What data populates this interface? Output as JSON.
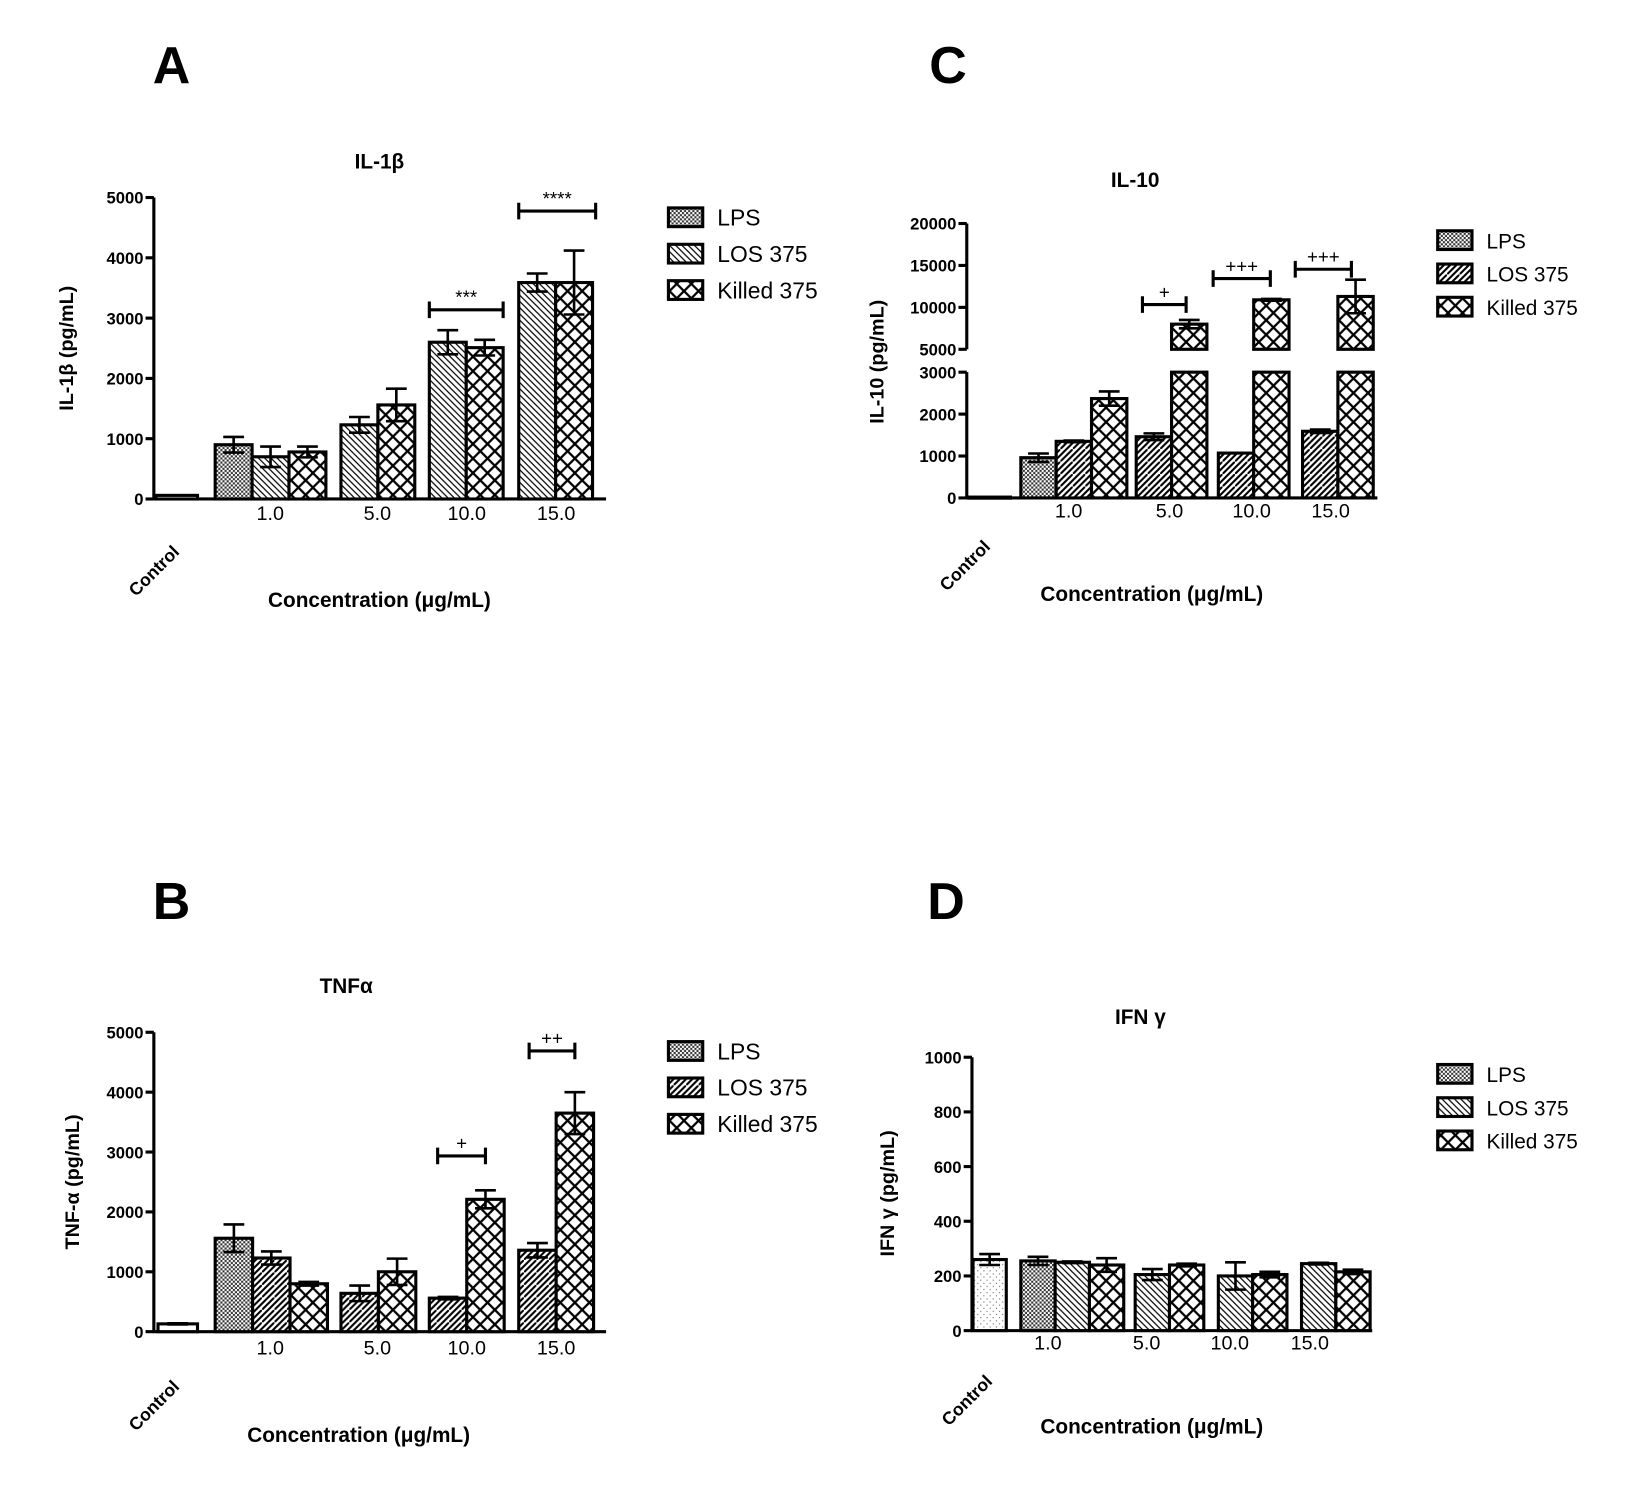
{
  "chart_data": [
    {
      "type": "bar",
      "panel": "A",
      "title": "IL-1β",
      "ylabel": "IL-1β (pg/mL)",
      "xlabel": "Concentration (μg/mL)",
      "ylim": [
        0,
        5000
      ],
      "yticks": [
        "0",
        "1000",
        "2000",
        "3000",
        "4000",
        "5000"
      ],
      "control_label": "Control",
      "control": {
        "value": 60,
        "error": 0
      },
      "categories": [
        "1.0",
        "5.0",
        "10.0",
        "15.0"
      ],
      "legend": [
        "LPS",
        "LOS 375",
        "Killed 375"
      ],
      "series": [
        {
          "name": "LPS",
          "values": [
            900,
            null,
            null,
            null
          ],
          "errors": [
            130,
            null,
            null,
            null
          ]
        },
        {
          "name": "LOS 375",
          "values": [
            700,
            1230,
            2600,
            3590
          ],
          "errors": [
            170,
            130,
            200,
            150
          ]
        },
        {
          "name": "Killed 375",
          "values": [
            780,
            1560,
            2510,
            3590
          ],
          "errors": [
            90,
            270,
            130,
            530
          ]
        }
      ],
      "annotations": [
        {
          "label": "***",
          "category": "10.0"
        },
        {
          "label": "****",
          "category": "15.0"
        }
      ]
    },
    {
      "type": "bar",
      "panel": "B",
      "title": "TNFα",
      "ylabel": "TNF-α (pg/mL)",
      "xlabel": "Concentration (μg/mL)",
      "ylim": [
        0,
        5000
      ],
      "yticks": [
        "0",
        "1000",
        "2000",
        "3000",
        "4000",
        "5000"
      ],
      "control_label": "Control",
      "control": {
        "value": 130,
        "error": 10
      },
      "categories": [
        "1.0",
        "5.0",
        "10.0",
        "15.0"
      ],
      "legend": [
        "LPS",
        "LOS 375",
        "Killed 375"
      ],
      "series": [
        {
          "name": "LPS",
          "values": [
            1560,
            null,
            null,
            null
          ],
          "errors": [
            230,
            null,
            null,
            null
          ]
        },
        {
          "name": "LOS 375",
          "values": [
            1230,
            640,
            560,
            1360
          ],
          "errors": [
            110,
            130,
            20,
            120
          ]
        },
        {
          "name": "Killed 375",
          "values": [
            800,
            1000,
            2210,
            3650
          ],
          "errors": [
            30,
            220,
            150,
            350
          ]
        }
      ],
      "annotations": [
        {
          "label": "+",
          "category": "10.0"
        },
        {
          "label": "++",
          "category": "15.0"
        }
      ]
    },
    {
      "type": "bar",
      "panel": "C",
      "title": "IL-10",
      "ylabel": "IL-10 (pg/mL)",
      "xlabel": "Concentration (μg/mL)",
      "ylim": [
        0,
        20000
      ],
      "axis_break": [
        3000,
        5000
      ],
      "yticks": [
        "0",
        "1000",
        "2000",
        "3000",
        "5000",
        "10000",
        "15000",
        "20000"
      ],
      "control_label": "Control",
      "control": {
        "value": 20,
        "error": 0
      },
      "categories": [
        "1.0",
        "5.0",
        "10.0",
        "15.0"
      ],
      "legend": [
        "LPS",
        "LOS 375",
        "Killed 375"
      ],
      "series": [
        {
          "name": "LPS",
          "values": [
            960,
            null,
            null,
            null
          ],
          "errors": [
            100,
            null,
            null,
            null
          ]
        },
        {
          "name": "LOS 375",
          "values": [
            1350,
            1460,
            1070,
            1590
          ],
          "errors": [
            20,
            80,
            0,
            40
          ]
        },
        {
          "name": "Killed 375",
          "values": [
            2370,
            8000,
            10900,
            11300
          ],
          "errors": [
            170,
            500,
            100,
            2000
          ]
        }
      ],
      "annotations": [
        {
          "label": "+",
          "category": "5.0"
        },
        {
          "label": "+++",
          "category": "10.0"
        },
        {
          "label": "+++",
          "category": "15.0"
        }
      ]
    },
    {
      "type": "bar",
      "panel": "D",
      "title": "IFN γ",
      "ylabel": "IFN γ (pg/mL)",
      "xlabel": "Concentration (μg/mL)",
      "ylim": [
        0,
        1000
      ],
      "yticks": [
        "0",
        "200",
        "400",
        "600",
        "800",
        "1000"
      ],
      "control_label": "Control",
      "control": {
        "value": 260,
        "error": 20
      },
      "categories": [
        "1.0",
        "5.0",
        "10.0",
        "15.0"
      ],
      "legend": [
        "LPS",
        "LOS 375",
        "Killed 375"
      ],
      "series": [
        {
          "name": "LPS",
          "values": [
            255,
            null,
            null,
            null
          ],
          "errors": [
            15,
            null,
            null,
            null
          ]
        },
        {
          "name": "LOS 375",
          "values": [
            250,
            205,
            200,
            245
          ],
          "errors": [
            3,
            20,
            50,
            3
          ]
        },
        {
          "name": "Killed 375",
          "values": [
            240,
            240,
            205,
            215
          ],
          "errors": [
            25,
            5,
            10,
            8
          ]
        }
      ],
      "annotations": []
    }
  ]
}
